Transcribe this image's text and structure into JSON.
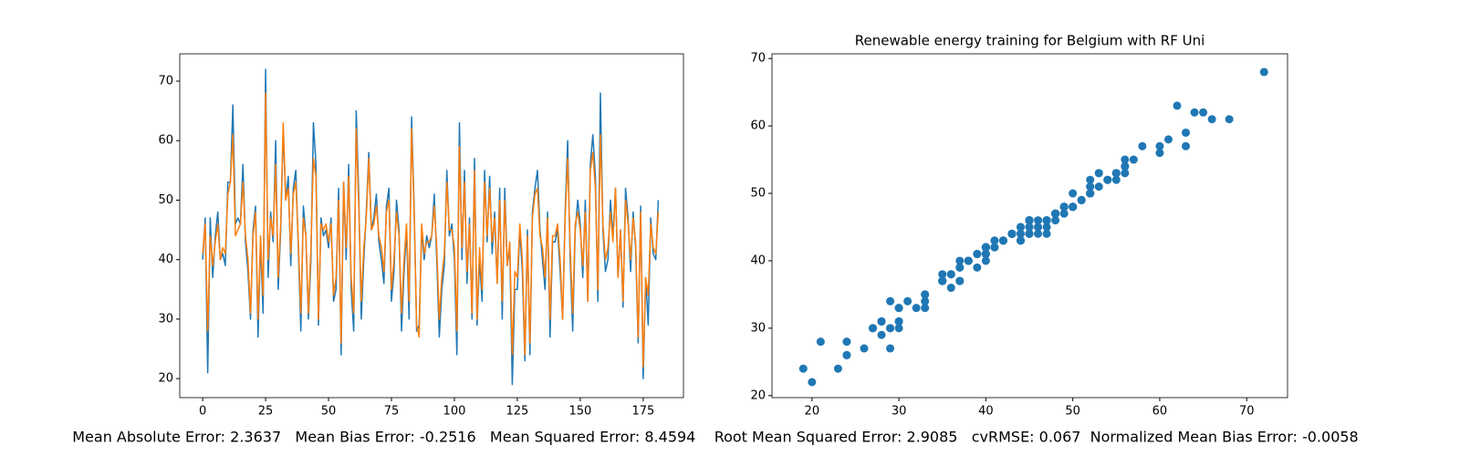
{
  "chart_data": [
    {
      "type": "line",
      "x": [
        0,
        1,
        2,
        3,
        4,
        5,
        6,
        7,
        8,
        9,
        10,
        11,
        12,
        13,
        14,
        15,
        16,
        17,
        18,
        19,
        20,
        21,
        22,
        23,
        24,
        25,
        26,
        27,
        28,
        29,
        30,
        31,
        32,
        33,
        34,
        35,
        36,
        37,
        38,
        39,
        40,
        41,
        42,
        43,
        44,
        45,
        46,
        47,
        48,
        49,
        50,
        51,
        52,
        53,
        54,
        55,
        56,
        57,
        58,
        59,
        60,
        61,
        62,
        63,
        64,
        65,
        66,
        67,
        68,
        69,
        70,
        71,
        72,
        73,
        74,
        75,
        76,
        77,
        78,
        79,
        80,
        81,
        82,
        83,
        84,
        85,
        86,
        87,
        88,
        89,
        90,
        91,
        92,
        93,
        94,
        95,
        96,
        97,
        98,
        99,
        100,
        101,
        102,
        103,
        104,
        105,
        106,
        107,
        108,
        109,
        110,
        111,
        112,
        113,
        114,
        115,
        116,
        117,
        118,
        119,
        120,
        121,
        122,
        123,
        124,
        125,
        126,
        127,
        128,
        129,
        130,
        131,
        132,
        133,
        134,
        135,
        136,
        137,
        138,
        139,
        140,
        141,
        142,
        143,
        144,
        145,
        146,
        147,
        148,
        149,
        150,
        151,
        152,
        153,
        154,
        155,
        156,
        157,
        158,
        159,
        160,
        161,
        162,
        163,
        164,
        165,
        166,
        167,
        168,
        169,
        170,
        171,
        172,
        173,
        174,
        175,
        176,
        177,
        178,
        179,
        180,
        181
      ],
      "series": [
        {
          "color": "#1f77b4",
          "values": [
            40,
            47,
            21,
            47,
            37,
            44,
            48,
            40,
            41,
            39,
            53,
            53,
            66,
            46,
            47,
            46,
            56,
            43,
            38,
            30,
            45,
            49,
            27,
            43,
            31,
            72,
            37,
            48,
            43,
            60,
            35,
            45,
            62,
            50,
            54,
            39,
            52,
            55,
            42,
            28,
            49,
            44,
            30,
            40,
            63,
            56,
            29,
            47,
            44,
            45,
            42,
            47,
            33,
            35,
            52,
            24,
            53,
            40,
            56,
            35,
            28,
            65,
            51,
            30,
            40,
            48,
            58,
            45,
            47,
            51,
            43,
            40,
            36,
            49,
            52,
            33,
            38,
            50,
            45,
            28,
            38,
            45,
            30,
            64,
            49,
            28,
            29,
            45,
            40,
            44,
            42,
            44,
            51,
            40,
            27,
            35,
            39,
            55,
            44,
            46,
            40,
            24,
            63,
            40,
            55,
            36,
            47,
            30,
            57,
            29,
            40,
            33,
            55,
            43,
            54,
            41,
            48,
            36,
            52,
            30,
            52,
            39,
            42,
            19,
            35,
            35,
            45,
            38,
            23,
            45,
            24,
            48,
            52,
            55,
            45,
            40,
            35,
            48,
            27,
            43,
            43,
            45,
            38,
            30,
            48,
            60,
            40,
            28,
            45,
            50,
            46,
            37,
            50,
            33,
            56,
            61,
            54,
            33,
            68,
            45,
            38,
            40,
            50,
            44,
            52,
            37,
            45,
            32,
            52,
            47,
            38,
            48,
            42,
            26,
            49,
            20,
            37,
            29,
            47,
            41,
            40,
            50
          ]
        },
        {
          "color": "#ff7f0e",
          "values": [
            41,
            46,
            28,
            44,
            39,
            43,
            46,
            40,
            42,
            41,
            51,
            53,
            61,
            44,
            45,
            46,
            53,
            44,
            40,
            31,
            44,
            48,
            30,
            44,
            34,
            68,
            40,
            47,
            44,
            56,
            37,
            46,
            63,
            50,
            52,
            41,
            51,
            53,
            43,
            31,
            47,
            44,
            31,
            42,
            57,
            54,
            30,
            46,
            45,
            46,
            43,
            46,
            34,
            37,
            50,
            26,
            53,
            42,
            54,
            37,
            31,
            62,
            49,
            33,
            42,
            47,
            57,
            45,
            46,
            49,
            44,
            42,
            38,
            48,
            50,
            35,
            40,
            48,
            44,
            31,
            40,
            46,
            33,
            62,
            48,
            29,
            27,
            46,
            41,
            43,
            43,
            44,
            49,
            42,
            30,
            37,
            41,
            53,
            45,
            45,
            42,
            28,
            59,
            42,
            53,
            38,
            46,
            31,
            55,
            30,
            42,
            35,
            53,
            44,
            52,
            43,
            47,
            36,
            50,
            33,
            50,
            39,
            43,
            24,
            38,
            37,
            46,
            40,
            24,
            44,
            26,
            47,
            51,
            52,
            44,
            42,
            37,
            47,
            30,
            44,
            44,
            46,
            40,
            30,
            47,
            57,
            42,
            31,
            46,
            48,
            45,
            39,
            48,
            33,
            55,
            58,
            52,
            35,
            61,
            46,
            40,
            42,
            48,
            43,
            52,
            37,
            45,
            33,
            50,
            46,
            40,
            47,
            43,
            27,
            48,
            22,
            37,
            34,
            46,
            42,
            41,
            48
          ]
        }
      ],
      "xlim": [
        -9.1,
        191
      ],
      "ylim": [
        16.8,
        74.6
      ],
      "xticks": [
        0,
        25,
        50,
        75,
        100,
        125,
        150,
        175
      ],
      "yticks": [
        20,
        30,
        40,
        50,
        60,
        70
      ]
    },
    {
      "type": "scatter",
      "title": "Renewable energy training for Belgium with RF Uni",
      "x": [
        40,
        47,
        21,
        47,
        37,
        44,
        48,
        40,
        41,
        39,
        53,
        53,
        66,
        46,
        47,
        46,
        56,
        43,
        38,
        30,
        45,
        49,
        27,
        43,
        31,
        72,
        37,
        48,
        43,
        60,
        35,
        45,
        62,
        50,
        54,
        39,
        52,
        55,
        42,
        28,
        49,
        44,
        30,
        40,
        63,
        56,
        29,
        47,
        44,
        45,
        42,
        47,
        33,
        35,
        52,
        24,
        53,
        40,
        56,
        35,
        28,
        65,
        51,
        30,
        40,
        48,
        58,
        45,
        47,
        51,
        43,
        40,
        36,
        49,
        52,
        33,
        38,
        50,
        45,
        28,
        38,
        45,
        30,
        64,
        49,
        28,
        29,
        45,
        40,
        44,
        42,
        44,
        51,
        40,
        27,
        35,
        39,
        55,
        44,
        46,
        40,
        24,
        63,
        40,
        55,
        36,
        47,
        30,
        57,
        29,
        40,
        33,
        55,
        43,
        54,
        41,
        48,
        36,
        52,
        30,
        52,
        39,
        42,
        19,
        35,
        35,
        45,
        38,
        23,
        45,
        24,
        48,
        52,
        55,
        45,
        40,
        35,
        48,
        27,
        43,
        43,
        45,
        38,
        30,
        48,
        60,
        40,
        28,
        45,
        50,
        46,
        37,
        50,
        33,
        56,
        61,
        54,
        33,
        68,
        45,
        38,
        40,
        50,
        44,
        52,
        37,
        45,
        32,
        52,
        47,
        38,
        48,
        42,
        26,
        49,
        20,
        37,
        29,
        47,
        41,
        40,
        50
      ],
      "series": [
        {
          "color": "#1f77b4",
          "values": [
            41,
            46,
            28,
            44,
            39,
            43,
            46,
            40,
            42,
            41,
            51,
            53,
            61,
            44,
            45,
            46,
            53,
            44,
            40,
            31,
            44,
            48,
            30,
            44,
            34,
            68,
            40,
            47,
            44,
            56,
            37,
            46,
            63,
            50,
            52,
            41,
            51,
            53,
            43,
            31,
            47,
            44,
            31,
            42,
            57,
            54,
            30,
            46,
            45,
            46,
            43,
            46,
            34,
            37,
            50,
            26,
            53,
            42,
            54,
            37,
            31,
            62,
            49,
            33,
            42,
            47,
            57,
            45,
            46,
            49,
            44,
            42,
            38,
            48,
            50,
            35,
            40,
            48,
            44,
            31,
            40,
            46,
            33,
            62,
            48,
            29,
            27,
            46,
            41,
            43,
            43,
            44,
            49,
            42,
            30,
            37,
            41,
            53,
            45,
            45,
            42,
            28,
            59,
            42,
            53,
            38,
            46,
            31,
            55,
            30,
            42,
            35,
            53,
            44,
            52,
            43,
            47,
            36,
            50,
            33,
            50,
            39,
            43,
            24,
            38,
            37,
            46,
            40,
            24,
            44,
            26,
            47,
            51,
            52,
            44,
            42,
            37,
            47,
            30,
            44,
            44,
            46,
            40,
            30,
            47,
            57,
            42,
            31,
            46,
            48,
            45,
            39,
            48,
            33,
            55,
            58,
            52,
            35,
            61,
            46,
            40,
            42,
            48,
            43,
            52,
            37,
            45,
            33,
            50,
            46,
            40,
            47,
            43,
            27,
            48,
            22,
            37,
            34,
            46,
            42,
            41,
            48
          ]
        }
      ],
      "xlim": [
        15.4,
        74.7
      ],
      "ylim": [
        19.7,
        70.7
      ],
      "xticks": [
        20,
        30,
        40,
        50,
        60,
        70
      ],
      "yticks": [
        20,
        30,
        40,
        50,
        60,
        70
      ]
    }
  ],
  "footer_text": "Mean Absolute Error: 2.3637   Mean Bias Error: -0.2516   Mean Squared Error: 8.4594    Root Mean Squared Error: 2.9085   cvRMSE: 0.067  Normalized Mean Bias Error: -0.0058"
}
